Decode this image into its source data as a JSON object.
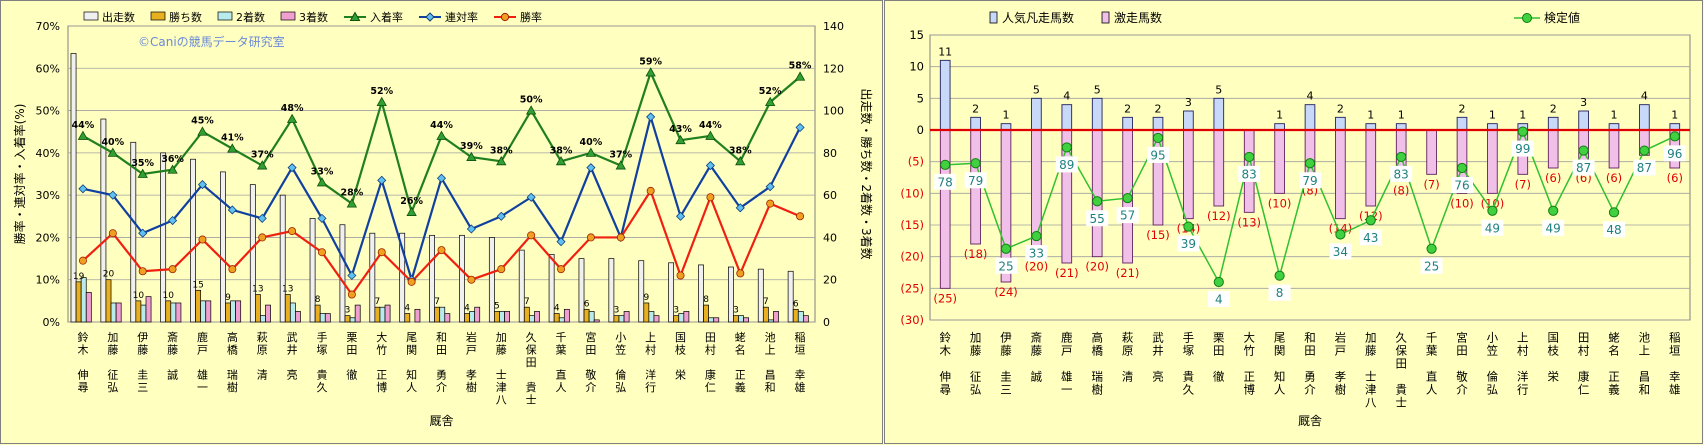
{
  "chart_data": [
    {
      "type": "bar+line",
      "watermark": "©Caniの競馬データ研究室",
      "categories": [
        "鈴木 伸尋",
        "加藤 征弘",
        "伊藤 圭三",
        "斎藤 誠",
        "鹿戸 雄一",
        "高橋 瑞樹",
        "萩原 清",
        "武井 亮",
        "手塚 貴久",
        "栗田 徹",
        "大竹 正博",
        "尾関 知人",
        "和田 勇介",
        "岩戸 孝樹",
        "加藤 士津八",
        "久保田 貴士",
        "千葉 直人",
        "宮田 敬介",
        "小笠 倫弘",
        "上村 洋行",
        "国枝 栄",
        "田村 康仁",
        "蛯名 正義",
        "池上 昌和",
        "稲垣 幸雄"
      ],
      "xlabel": "厩舎",
      "ylabel_left": "勝率・連対率・入着率(%)",
      "ylabel_right": "出走数・勝ち数・2着数・3着数",
      "ylim_left": [
        0,
        70
      ],
      "yticks_left": [
        "0%",
        "10%",
        "20%",
        "30%",
        "40%",
        "50%",
        "60%",
        "70%"
      ],
      "ylim_right": [
        0,
        140
      ],
      "yticks_right": [
        "0",
        "20",
        "40",
        "60",
        "80",
        "100",
        "120",
        "140"
      ],
      "grid": true,
      "legend_position": "top",
      "bar_series": [
        {
          "name": "出走数",
          "color": "#f0f0f0",
          "values": [
            127,
            96,
            85,
            80,
            77,
            71,
            65,
            60,
            49,
            46,
            42,
            42,
            41,
            41,
            40,
            34,
            32,
            30,
            30,
            29,
            28,
            27,
            26,
            25,
            24
          ]
        },
        {
          "name": "勝ち数",
          "color": "#e8b020",
          "values": [
            19,
            20,
            10,
            10,
            15,
            9,
            13,
            13,
            8,
            3,
            7,
            4,
            7,
            4,
            5,
            7,
            4,
            6,
            3,
            9,
            3,
            8,
            3,
            7,
            6
          ]
        },
        {
          "name": "2着数",
          "color": "#b8ecec",
          "values": [
            21,
            9,
            8,
            9,
            10,
            10,
            3,
            9,
            4,
            2,
            7,
            0,
            7,
            5,
            5,
            3,
            2,
            5,
            3,
            5,
            4,
            2,
            3,
            1,
            5
          ]
        },
        {
          "name": "3着数",
          "color": "#f0a0d0",
          "values": [
            14,
            9,
            12,
            9,
            10,
            10,
            8,
            5,
            4,
            8,
            8,
            6,
            4,
            7,
            5,
            5,
            6,
            1,
            5,
            3,
            5,
            2,
            2,
            5,
            3
          ]
        }
      ],
      "line_series": [
        {
          "name": "入着率",
          "color": "#208020",
          "values": [
            44,
            40,
            35,
            36,
            45,
            41,
            37,
            48,
            33,
            28,
            52,
            26,
            44,
            39,
            38,
            50,
            38,
            40,
            37,
            59,
            43,
            44,
            38,
            52,
            58
          ]
        },
        {
          "name": "連対率",
          "color": "#1040a0",
          "values": [
            31.5,
            30,
            21,
            24,
            32.5,
            26.5,
            24.5,
            36.5,
            24.5,
            11,
            33.5,
            10,
            34,
            22,
            25,
            29.5,
            19,
            36.5,
            20,
            48.5,
            25,
            37,
            27,
            32,
            46
          ]
        },
        {
          "name": "勝率",
          "color": "#f02010",
          "values": [
            14.5,
            21,
            12,
            12.5,
            19.5,
            12.5,
            20,
            21.5,
            16.5,
            6.5,
            16.5,
            9.5,
            17,
            10,
            12.5,
            20.5,
            12.5,
            20,
            20,
            31,
            11,
            29.5,
            11.5,
            28,
            25
          ]
        }
      ],
      "line_labels": [
        "44%",
        "40%",
        "35%",
        "36%",
        "45%",
        "41%",
        "37%",
        "48%",
        "33%",
        "28%",
        "52%",
        "26%",
        "44%",
        "39%",
        "38%",
        "50%",
        "38%",
        "40%",
        "37%",
        "59%",
        "43%",
        "44%",
        "38%",
        "52%",
        "58%"
      ]
    },
    {
      "type": "bar+line",
      "categories": [
        "鈴木 伸尋",
        "加藤 征弘",
        "伊藤 圭三",
        "斎藤 誠",
        "鹿戸 雄一",
        "高橋 瑞樹",
        "萩原 清",
        "武井 亮",
        "手塚 貴久",
        "栗田 徹",
        "大竹 正博",
        "尾関 知人",
        "和田 勇介",
        "岩戸 孝樹",
        "加藤 士津八",
        "久保田 貴士",
        "千葉 直人",
        "宮田 敬介",
        "小笠 倫弘",
        "上村 洋行",
        "国枝 栄",
        "田村 康仁",
        "蛯名 正義",
        "池上 昌和",
        "稲垣 幸雄"
      ],
      "xlabel": "厩舎",
      "ylim": [
        -30,
        15
      ],
      "yticks": [
        "(30)",
        "(25)",
        "(20)",
        "(15)",
        "(10)",
        "(5)",
        "0",
        "5",
        "10",
        "15"
      ],
      "grid": true,
      "legend_position": "top",
      "bar_series": [
        {
          "name": "人気凡走馬数",
          "color": "#c8d8f8",
          "values": [
            11,
            2,
            1,
            5,
            4,
            5,
            2,
            2,
            3,
            5,
            0,
            1,
            4,
            2,
            1,
            1,
            0,
            2,
            1,
            1,
            2,
            3,
            1,
            4,
            1
          ]
        },
        {
          "name": "激走馬数",
          "color": "#f0c0e8",
          "values": [
            -25,
            -18,
            -24,
            -20,
            -21,
            -20,
            -21,
            -15,
            -14,
            -12,
            -13,
            -10,
            -8,
            -14,
            -12,
            -8,
            -7,
            -10,
            -10,
            -7,
            -6,
            -6,
            -6,
            -4,
            -6
          ]
        }
      ],
      "top_labels": [
        "11",
        "2",
        "1",
        "5",
        "4",
        "5",
        "2",
        "2",
        "3",
        "5",
        "",
        "1",
        "4",
        "2",
        "1",
        "1",
        "",
        "2",
        "1",
        "1",
        "2",
        "3",
        "1",
        "4",
        "1"
      ],
      "bottom_labels": [
        "(25)",
        "(18)",
        "(24)",
        "(20)",
        "(21)",
        "(20)",
        "(21)",
        "(15)",
        "(14)",
        "(12)",
        "(13)",
        "(10)",
        "(8)",
        "(14)",
        "(12)",
        "(8)",
        "(7)",
        "(10)",
        "(10)",
        "(7)",
        "(6)",
        "(6)",
        "(6)",
        "(4)",
        "(6)"
      ],
      "line_series": [
        {
          "name": "検定値",
          "color": "#30c030",
          "values": [
            78,
            79,
            25,
            33,
            89,
            55,
            57,
            95,
            39,
            4,
            83,
            8,
            79,
            34,
            43,
            83,
            25,
            76,
            49,
            99,
            49,
            87,
            48,
            87,
            96
          ]
        }
      ]
    }
  ]
}
